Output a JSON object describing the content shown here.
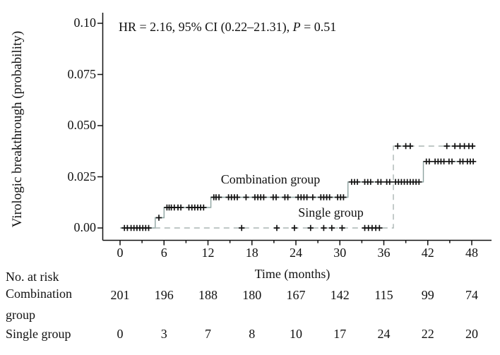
{
  "figure": {
    "y_axis_label": "Virologic breakthrough (probability)",
    "x_axis_label": "Time (months)",
    "annotation": {
      "before_p": "HR = 2.16, 95% CI (0.22–21.31), ",
      "p_symbol": "P",
      "after_p": " = 0.51"
    },
    "curve_labels": {
      "combination": "Combination group",
      "single": "Single group"
    }
  },
  "risk_table": {
    "heading": "No. at risk",
    "combination_label_line1": "Combination",
    "combination_label_line2": "group",
    "single_label": "Single group",
    "combination_values": [
      "201",
      "196",
      "188",
      "180",
      "167",
      "142",
      "115",
      "99",
      "74"
    ],
    "single_values": [
      "0",
      "3",
      "7",
      "8",
      "10",
      "17",
      "24",
      "22",
      "20"
    ]
  },
  "chart_data": {
    "type": "line",
    "subtype": "kaplan-meier-step-cumulative-incidence",
    "title": "",
    "xlabel": "Time (months)",
    "ylabel": "Virologic breakthrough (probability)",
    "xlim": [
      0,
      48
    ],
    "ylim": [
      0,
      0.1
    ],
    "x_ticks": [
      0,
      6,
      12,
      18,
      24,
      30,
      36,
      42,
      48
    ],
    "x_minor_tick_interval": 3,
    "y_ticks": [
      0,
      0.025,
      0.05,
      0.075,
      0.1
    ],
    "y_tick_labels": [
      "0.00",
      "0.025",
      "0.050",
      "0.075",
      "0.10"
    ],
    "grid": false,
    "legend_position": "inline-labels",
    "annotation": "HR = 2.16, 95% CI (0.22–21.31), P = 0.51",
    "axis_color": "#111111",
    "censor_mark_color": "#121212",
    "series": [
      {
        "name": "Combination group",
        "line_style": "solid",
        "color": "#8ea4a1",
        "steps": [
          [
            0,
            0
          ],
          [
            4.8,
            0
          ],
          [
            4.8,
            0.005
          ],
          [
            6,
            0.005
          ],
          [
            6,
            0.01
          ],
          [
            12.4,
            0.01
          ],
          [
            12.4,
            0.015
          ],
          [
            31.1,
            0.015
          ],
          [
            31.1,
            0.0225
          ],
          [
            41.4,
            0.0225
          ],
          [
            41.4,
            0.0325
          ],
          [
            48.4,
            0.0325
          ]
        ],
        "censor_marks": [
          [
            0.6,
            0
          ],
          [
            1.0,
            0
          ],
          [
            1.5,
            0
          ],
          [
            1.9,
            0
          ],
          [
            2.3,
            0
          ],
          [
            2.7,
            0
          ],
          [
            3.1,
            0
          ],
          [
            3.5,
            0
          ],
          [
            3.9,
            0
          ],
          [
            5.3,
            0.005
          ],
          [
            6.4,
            0.01
          ],
          [
            6.7,
            0.01
          ],
          [
            7.0,
            0.01
          ],
          [
            7.4,
            0.01
          ],
          [
            7.9,
            0.01
          ],
          [
            8.3,
            0.01
          ],
          [
            9.4,
            0.01
          ],
          [
            9.8,
            0.01
          ],
          [
            10.2,
            0.01
          ],
          [
            10.6,
            0.01
          ],
          [
            11.0,
            0.01
          ],
          [
            11.4,
            0.01
          ],
          [
            12.8,
            0.015
          ],
          [
            13.1,
            0.015
          ],
          [
            13.5,
            0.015
          ],
          [
            14.8,
            0.015
          ],
          [
            15.2,
            0.015
          ],
          [
            15.6,
            0.015
          ],
          [
            16.0,
            0.015
          ],
          [
            17.2,
            0.015
          ],
          [
            18.4,
            0.015
          ],
          [
            18.8,
            0.015
          ],
          [
            19.2,
            0.015
          ],
          [
            19.6,
            0.015
          ],
          [
            20.9,
            0.015
          ],
          [
            21.3,
            0.015
          ],
          [
            22.5,
            0.015
          ],
          [
            22.9,
            0.015
          ],
          [
            24.3,
            0.015
          ],
          [
            24.7,
            0.015
          ],
          [
            25.1,
            0.015
          ],
          [
            25.5,
            0.015
          ],
          [
            26.3,
            0.015
          ],
          [
            27.4,
            0.015
          ],
          [
            27.8,
            0.015
          ],
          [
            28.2,
            0.015
          ],
          [
            28.6,
            0.015
          ],
          [
            29.7,
            0.015
          ],
          [
            30.1,
            0.015
          ],
          [
            30.5,
            0.015
          ],
          [
            31.6,
            0.0225
          ],
          [
            32.0,
            0.0225
          ],
          [
            32.4,
            0.0225
          ],
          [
            33.4,
            0.0225
          ],
          [
            33.8,
            0.0225
          ],
          [
            34.2,
            0.0225
          ],
          [
            35.2,
            0.0225
          ],
          [
            35.6,
            0.0225
          ],
          [
            36.4,
            0.0225
          ],
          [
            36.8,
            0.0225
          ],
          [
            37.6,
            0.0225
          ],
          [
            38.0,
            0.0225
          ],
          [
            38.4,
            0.0225
          ],
          [
            38.8,
            0.0225
          ],
          [
            39.2,
            0.0225
          ],
          [
            39.6,
            0.0225
          ],
          [
            40.0,
            0.0225
          ],
          [
            40.4,
            0.0225
          ],
          [
            40.8,
            0.0225
          ],
          [
            41.8,
            0.0325
          ],
          [
            42.2,
            0.0325
          ],
          [
            43.0,
            0.0325
          ],
          [
            43.4,
            0.0325
          ],
          [
            43.8,
            0.0325
          ],
          [
            44.2,
            0.0325
          ],
          [
            44.9,
            0.0325
          ],
          [
            45.3,
            0.0325
          ],
          [
            46.4,
            0.0325
          ],
          [
            46.8,
            0.0325
          ],
          [
            47.4,
            0.0325
          ],
          [
            47.8,
            0.0325
          ],
          [
            48.2,
            0.0325
          ]
        ]
      },
      {
        "name": "Single group",
        "line_style": "dashed",
        "color": "#aab5b3",
        "steps": [
          [
            2.0,
            0
          ],
          [
            37.3,
            0
          ],
          [
            37.3,
            0.04
          ],
          [
            48.4,
            0.04
          ]
        ],
        "censor_marks": [
          [
            16.6,
            0
          ],
          [
            21.4,
            0
          ],
          [
            23.8,
            0
          ],
          [
            26.0,
            0
          ],
          [
            27.8,
            0
          ],
          [
            28.9,
            0
          ],
          [
            30.3,
            0
          ],
          [
            33.4,
            0
          ],
          [
            33.9,
            0
          ],
          [
            34.4,
            0
          ],
          [
            34.9,
            0
          ],
          [
            35.4,
            0
          ],
          [
            37.9,
            0.04
          ],
          [
            39.0,
            0.04
          ],
          [
            39.6,
            0.04
          ],
          [
            44.6,
            0.04
          ],
          [
            45.7,
            0.04
          ],
          [
            46.4,
            0.04
          ],
          [
            47.0,
            0.04
          ],
          [
            47.6,
            0.04
          ],
          [
            48.1,
            0.04
          ]
        ]
      }
    ],
    "risk_table_time_points": [
      0,
      6,
      12,
      18,
      24,
      30,
      36,
      42,
      48
    ]
  }
}
